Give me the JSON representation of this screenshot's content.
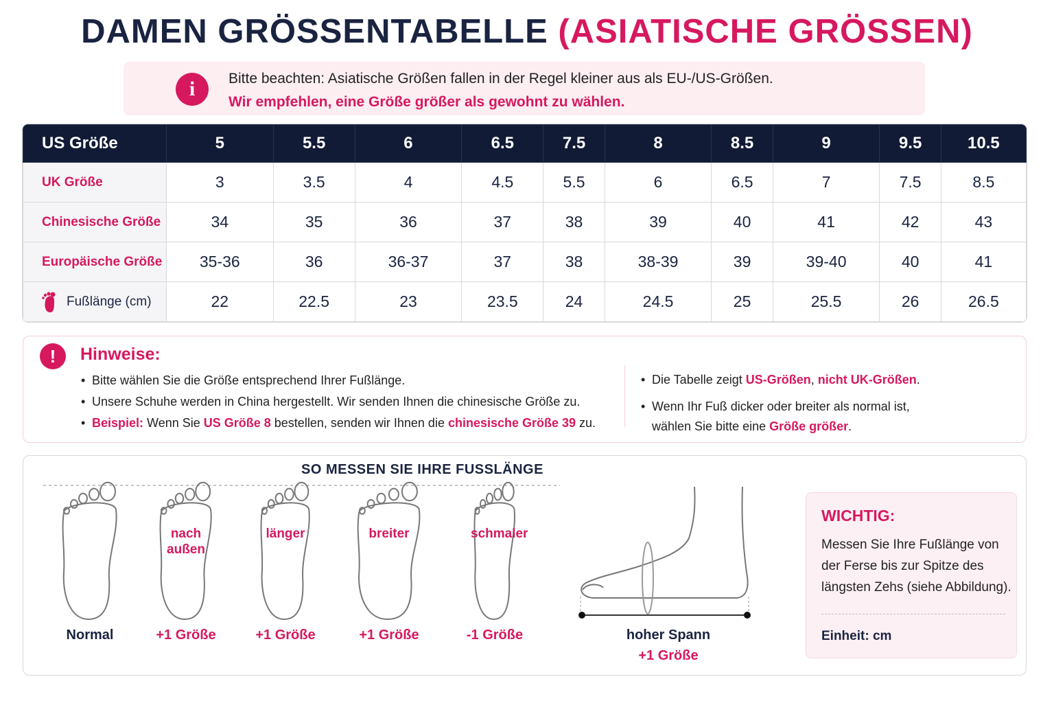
{
  "header": {
    "title": "DAMEN GRÖSSENTABELLE",
    "title_highlight": "(ASIATISCHE GRÖSSEN)"
  },
  "notice": {
    "line1": "Bitte beachten: Asiatische Größen fallen in der Regel kleiner aus als EU-/US-Größen.",
    "line2": "Wir empfehlen, eine Größe größer als gewohnt zu wählen."
  },
  "table": {
    "header": [
      "US Größe",
      "5",
      "5.5",
      "6",
      "6.5",
      "7.5",
      "8",
      "8.5",
      "9",
      "9.5",
      "10.5"
    ],
    "rows": [
      [
        "UK Größe",
        "3",
        "3.5",
        "4",
        "4.5",
        "5.5",
        "6",
        "6.5",
        "7",
        "7.5",
        "8.5"
      ],
      [
        "Chinesische Größe",
        "34",
        "35",
        "36",
        "37",
        "38",
        "39",
        "40",
        "41",
        "42",
        "43"
      ],
      [
        "Europäische Größe",
        "35-36",
        "36",
        "36-37",
        "37",
        "38",
        "38-39",
        "39",
        "39-40",
        "40",
        "41"
      ],
      [
        "Fußlänge (cm)",
        "22",
        "22.5",
        "23",
        "23.5",
        "24",
        "24.5",
        "25",
        "25.5",
        "26",
        "26.5"
      ]
    ]
  },
  "hints": {
    "title": "Hinweise:",
    "left": [
      [
        "Bitte wählen Sie die Größe entsprechend Ihrer Fußlänge."
      ],
      [
        "Unsere Schuhe werden in China hergestellt. Wir senden Ihnen die chinesische Größe zu."
      ],
      [
        "Beispiel:",
        " Wenn Sie ",
        "US Größe 8",
        " bestellen, senden wir Ihnen die ",
        "chinesische Größe 39",
        " zu."
      ]
    ],
    "right": [
      [
        "Die Tabelle zeigt ",
        "US-Größen",
        ", ",
        "nicht UK-Größen",
        "."
      ],
      [
        "Wenn Ihr Fuß dicker oder breiter als normal ist,",
        "wählen Sie bitte eine ",
        "Größe größer",
        "."
      ]
    ]
  },
  "measure": {
    "title": "SO MESSEN SIE IHRE FUSSLÄNGE",
    "feet": [
      {
        "label": "Normal"
      },
      {
        "note": "nach außen",
        "label": "+1 Größe"
      },
      {
        "note": "länger",
        "label": "+1 Größe"
      },
      {
        "note": "breiter",
        "label": "+1 Größe"
      },
      {
        "note": "schmaler",
        "label": "-1 Größe"
      }
    ],
    "side": {
      "label": "hoher Spann",
      "sublabel": "+1 Größe"
    },
    "important": {
      "title": "WICHTIG:",
      "text": "Messen Sie Ihre Fußlänge von der Ferse bis zur Spitze des längsten Zehs (siehe Abbildung).",
      "unit": "Einheit: cm"
    }
  }
}
